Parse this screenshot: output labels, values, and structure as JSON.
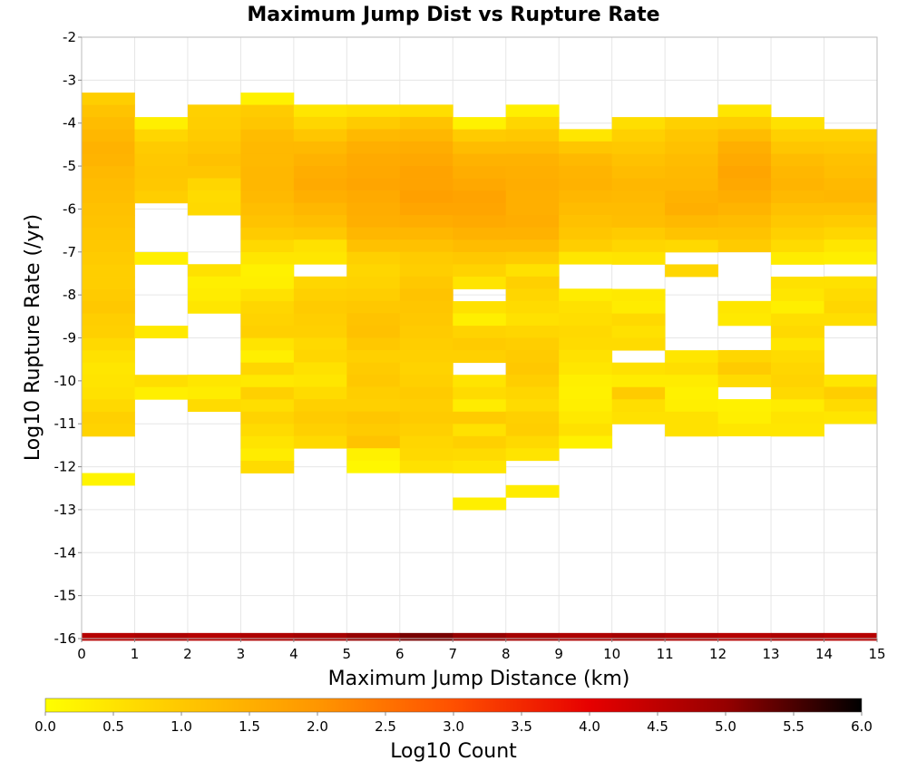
{
  "chart_data": {
    "type": "heatmap",
    "title": "Maximum Jump Dist vs Rupture Rate",
    "xlabel": "Maximum Jump Distance (km)",
    "ylabel": "Log10 Rupture Rate (/yr)",
    "xlim": [
      0,
      15
    ],
    "ylim": [
      -16,
      -2
    ],
    "x_ticks": [
      "0",
      "1",
      "2",
      "3",
      "4",
      "5",
      "6",
      "7",
      "8",
      "9",
      "10",
      "11",
      "12",
      "13",
      "14",
      "15"
    ],
    "y_ticks": [
      "-2",
      "-3",
      "-4",
      "-5",
      "-6",
      "-7",
      "-8",
      "-9",
      "-10",
      "-11",
      "-12",
      "-13",
      "-14",
      "-15",
      "-16"
    ],
    "x_bin_width": 1,
    "y_bin_height": 0.2857,
    "grid": true,
    "colorbar": {
      "label": "Log10 Count",
      "min": 0,
      "max": 6,
      "ticks": [
        "0.0",
        "0.5",
        "1.0",
        "1.5",
        "2.0",
        "2.5",
        "3.0",
        "3.5",
        "4.0",
        "4.5",
        "5.0",
        "5.5",
        "6.0"
      ],
      "colors": [
        "#ffff00",
        "#ffc800",
        "#ff9600",
        "#ff5000",
        "#e60000",
        "#960000",
        "#000000"
      ]
    },
    "columns": [
      {
        "x": 0,
        "top": -3.29,
        "values": [
          0.9,
          1.1,
          1.25,
          1.35,
          1.45,
          1.4,
          1.3,
          1.25,
          1.2,
          1.15,
          1.1,
          1.05,
          1.0,
          0.95,
          0.9,
          0.9,
          0.95,
          1.0,
          0.9,
          0.85,
          0.7,
          0.55,
          0.45,
          0.5,
          0.55,
          0.7,
          0.85,
          0.8,
          null,
          null,
          null,
          0.2
        ]
      },
      {
        "x": 1,
        "top": -3.86,
        "values": [
          0.3,
          0.75,
          0.95,
          1.0,
          1.05,
          1.0,
          0.9,
          null,
          null,
          null,
          null,
          0.3,
          null,
          null,
          null,
          null,
          null,
          0.4,
          null,
          null,
          null,
          0.6,
          0.3
        ]
      },
      {
        "x": 2,
        "top": -3.57,
        "values": [
          0.85,
          0.9,
          0.95,
          1.05,
          1.15,
          1.05,
          0.75,
          0.65,
          0.7,
          null,
          null,
          null,
          null,
          0.55,
          0.3,
          0.35,
          0.45,
          null,
          null,
          null,
          null,
          null,
          0.45,
          0.35,
          0.65
        ]
      },
      {
        "x": 3,
        "top": -3.29,
        "values": [
          0.25,
          0.95,
          1.05,
          1.25,
          1.3,
          1.3,
          1.35,
          1.35,
          1.3,
          1.2,
          1.1,
          0.95,
          0.7,
          0.45,
          0.25,
          0.3,
          0.55,
          0.75,
          0.8,
          0.85,
          0.5,
          0.3,
          0.75,
          0.4,
          0.85,
          0.6,
          0.8,
          0.65,
          0.5,
          0.35,
          0.65
        ]
      },
      {
        "x": 4,
        "top": -3.57,
        "values": [
          0.45,
          0.75,
          1.05,
          1.3,
          1.45,
          1.55,
          1.6,
          1.5,
          1.35,
          1.2,
          1.0,
          0.55,
          0.45,
          null,
          0.75,
          0.85,
          0.95,
          0.9,
          0.85,
          0.7,
          0.75,
          0.55,
          0.45,
          0.65,
          0.85,
          0.95,
          0.85,
          0.7
        ]
      },
      {
        "x": 5,
        "top": -3.57,
        "values": [
          0.55,
          0.95,
          1.3,
          1.5,
          1.6,
          1.65,
          1.7,
          1.6,
          1.55,
          1.5,
          1.35,
          1.15,
          0.85,
          0.75,
          0.8,
          0.9,
          1.0,
          1.1,
          1.15,
          1.0,
          0.85,
          0.95,
          1.0,
          0.9,
          0.85,
          1.05,
          0.95,
          1.1,
          0.25,
          0.15
        ]
      },
      {
        "x": 6,
        "top": -3.57,
        "values": [
          0.6,
          1.1,
          1.35,
          1.55,
          1.65,
          1.75,
          1.75,
          1.8,
          1.7,
          1.55,
          1.35,
          1.15,
          0.95,
          0.9,
          1.0,
          1.1,
          1.05,
          1.0,
          0.95,
          0.9,
          0.85,
          0.8,
          0.85,
          0.95,
          0.9,
          0.95,
          0.85,
          0.75,
          0.7,
          0.55
        ]
      },
      {
        "x": 7,
        "top": -3.86,
        "values": [
          0.25,
          0.95,
          1.25,
          1.45,
          1.55,
          1.65,
          1.75,
          1.7,
          1.6,
          1.45,
          1.25,
          1.0,
          0.8,
          0.5,
          null,
          0.55,
          0.3,
          0.8,
          0.95,
          0.85,
          null,
          0.5,
          0.65,
          0.35,
          0.95,
          0.55,
          0.85,
          0.65,
          0.45,
          null,
          null,
          0.3
        ]
      },
      {
        "x": 8,
        "top": -3.57,
        "values": [
          0.3,
          0.75,
          1.0,
          1.25,
          1.45,
          1.5,
          1.55,
          1.5,
          1.5,
          1.55,
          1.45,
          1.25,
          0.95,
          0.55,
          0.85,
          0.75,
          0.65,
          0.55,
          0.75,
          0.9,
          0.95,
          1.0,
          0.9,
          0.75,
          0.65,
          0.85,
          0.9,
          0.7,
          0.5,
          null,
          null,
          0.35
        ]
      },
      {
        "x": 9,
        "top": -4.14,
        "values": [
          0.45,
          1.05,
          1.3,
          1.4,
          1.45,
          1.35,
          1.25,
          1.15,
          1.05,
          0.9,
          0.45,
          null,
          null,
          0.35,
          0.55,
          0.6,
          0.7,
          0.65,
          0.55,
          0.45,
          0.3,
          0.25,
          0.3,
          0.4,
          0.55,
          0.25
        ]
      },
      {
        "x": 10,
        "top": -3.86,
        "values": [
          0.6,
          0.85,
          1.0,
          1.15,
          1.25,
          1.35,
          1.3,
          1.25,
          1.2,
          0.95,
          0.75,
          0.5,
          null,
          null,
          0.4,
          0.35,
          0.7,
          0.55,
          0.65,
          null,
          0.55,
          0.35,
          0.95,
          0.6,
          0.55
        ]
      },
      {
        "x": 11,
        "top": -3.86,
        "values": [
          0.85,
          1.05,
          1.15,
          1.25,
          1.3,
          1.35,
          1.45,
          1.5,
          1.3,
          1.1,
          0.7,
          null,
          0.75,
          null,
          null,
          null,
          null,
          null,
          null,
          0.45,
          0.6,
          0.35,
          0.25,
          0.3,
          0.55,
          0.55
        ]
      },
      {
        "x": 12,
        "top": -3.57,
        "values": [
          0.45,
          0.9,
          1.25,
          1.5,
          1.6,
          1.7,
          1.65,
          1.55,
          1.4,
          1.25,
          1.1,
          0.95,
          null,
          null,
          null,
          null,
          0.45,
          0.4,
          null,
          null,
          0.75,
          0.95,
          0.65,
          null,
          0.25,
          0.3,
          0.45
        ]
      },
      {
        "x": 13,
        "top": -3.86,
        "values": [
          0.55,
          0.85,
          1.05,
          1.25,
          1.35,
          1.4,
          1.3,
          1.15,
          1.0,
          0.85,
          0.65,
          0.35,
          null,
          0.55,
          0.45,
          0.3,
          0.6,
          0.7,
          0.45,
          0.65,
          0.75,
          0.8,
          0.7,
          0.35,
          0.5,
          0.45
        ]
      },
      {
        "x": 14,
        "top": -4.14,
        "values": [
          0.85,
          1.0,
          1.15,
          1.2,
          1.3,
          1.35,
          1.15,
          0.95,
          0.75,
          0.45,
          0.3,
          null,
          0.55,
          0.65,
          0.75,
          0.6,
          null,
          null,
          null,
          null,
          0.45,
          0.9,
          0.65,
          0.45
        ]
      }
    ],
    "bottom_row": {
      "y": -16,
      "values": [
        4.6,
        4.7,
        4.6,
        4.7,
        4.8,
        5.0,
        5.2,
        5.0,
        4.8,
        4.7,
        4.8,
        4.7,
        4.6,
        4.7,
        4.6
      ]
    }
  }
}
